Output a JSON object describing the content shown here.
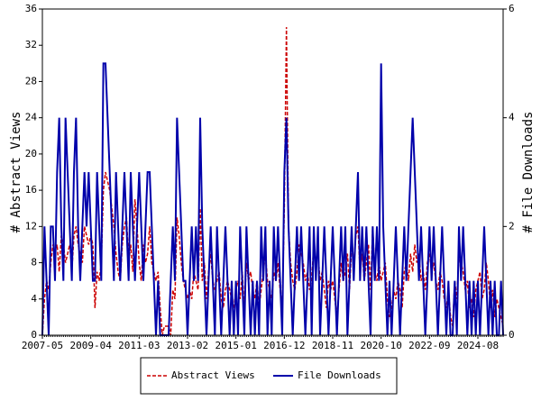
{
  "chart_data": {
    "type": "line",
    "ylabel": "# Abstract Views",
    "y2label": "# File Downloads",
    "categories": [
      "2007-05",
      null,
      null,
      null,
      null,
      null,
      null,
      null,
      null,
      null,
      null,
      null,
      null,
      null,
      null,
      null,
      null,
      null,
      null,
      null,
      null,
      null,
      null,
      "2009-04",
      null,
      null,
      null,
      null,
      null,
      null,
      null,
      null,
      null,
      null,
      null,
      null,
      null,
      null,
      null,
      null,
      null,
      null,
      null,
      null,
      null,
      null,
      "2011-03",
      null,
      null,
      null,
      null,
      null,
      null,
      null,
      null,
      null,
      null,
      null,
      null,
      null,
      null,
      null,
      null,
      null,
      null,
      null,
      null,
      null,
      null,
      "2013-02",
      null,
      null,
      null,
      null,
      null,
      null,
      null,
      null,
      null,
      null,
      null,
      null,
      null,
      null,
      null,
      null,
      null,
      null,
      null,
      null,
      null,
      null,
      "2015-01",
      null,
      null,
      null,
      null,
      null,
      null,
      null,
      null,
      null,
      null,
      null,
      null,
      null,
      null,
      null,
      null,
      null,
      null,
      null,
      null,
      null,
      null,
      "2016-12",
      null,
      null,
      null,
      null,
      null,
      null,
      null,
      null,
      null,
      null,
      null,
      null,
      null,
      null,
      null,
      null,
      null,
      null,
      null,
      null,
      null,
      null,
      "2018-11",
      null,
      null,
      null,
      null,
      null,
      null,
      null,
      null,
      null,
      null,
      null,
      null,
      null,
      null,
      null,
      null,
      null,
      null,
      null,
      null,
      null,
      null,
      "2020-10",
      null,
      null,
      null,
      null,
      null,
      null,
      null,
      null,
      null,
      null,
      null,
      null,
      null,
      null,
      null,
      null,
      null,
      null,
      null,
      null,
      null,
      null,
      "2022-09",
      null,
      null,
      null,
      null,
      null,
      null,
      null,
      null,
      null,
      null,
      null,
      null,
      null,
      null,
      null,
      null,
      null,
      null,
      null,
      null,
      null,
      null,
      "2024-08",
      null,
      null,
      null,
      null,
      null,
      null,
      null,
      null,
      null,
      null,
      null,
      null
    ],
    "series": [
      {
        "name": "Abstract Views",
        "color": "#cc0000",
        "dashed": true,
        "values": [
          0,
          4,
          6,
          5,
          8,
          10,
          9,
          10,
          7,
          11,
          10,
          8,
          9,
          10,
          7,
          11,
          12,
          10,
          9,
          8,
          12,
          11,
          10,
          11,
          10,
          3,
          7,
          6,
          8,
          16,
          18,
          17,
          16,
          14,
          12,
          9,
          7,
          6,
          10,
          12,
          13,
          8,
          10,
          7,
          15,
          12,
          8,
          6,
          10,
          8,
          9,
          12,
          8,
          7,
          6,
          7,
          3,
          0,
          1,
          1,
          1,
          0,
          5,
          4,
          13,
          11,
          8,
          6,
          5,
          4,
          5,
          4,
          7,
          6,
          5,
          14,
          6,
          8,
          4,
          7,
          9,
          6,
          5,
          6,
          7,
          4,
          3,
          5,
          6,
          5,
          4,
          3,
          5,
          6,
          4,
          7,
          3,
          8,
          6,
          7,
          5,
          4,
          6,
          3,
          5,
          7,
          9,
          6,
          5,
          4,
          7,
          6,
          8,
          5,
          3,
          14,
          34,
          12,
          8,
          6,
          5,
          7,
          10,
          9,
          8,
          6,
          7,
          5,
          6,
          10,
          8,
          9,
          6,
          7,
          5,
          3,
          6,
          5,
          6,
          4,
          2,
          5,
          8,
          6,
          7,
          9,
          5,
          10,
          8,
          11,
          12,
          7,
          9,
          6,
          8,
          10,
          5,
          12,
          7,
          6,
          8,
          6,
          7,
          8,
          4,
          2,
          3,
          5,
          4,
          6,
          5,
          3,
          7,
          8,
          6,
          9,
          7,
          10,
          8,
          9,
          6,
          7,
          5,
          8,
          9,
          7,
          8,
          6,
          5,
          7,
          6,
          4,
          3,
          5,
          2,
          1,
          6,
          4,
          9,
          8,
          7,
          5,
          6,
          3,
          4,
          2,
          5,
          6,
          7,
          4,
          5,
          8,
          6,
          3,
          5,
          2,
          4,
          3,
          2,
          1
        ]
      },
      {
        "name": "File Downloads",
        "color": "#0000aa",
        "axis": "y2",
        "values": [
          0,
          2,
          1,
          0,
          2,
          2,
          1,
          3,
          4,
          2,
          1,
          4,
          3,
          2,
          1,
          3,
          4,
          2,
          1,
          2,
          3,
          2,
          3,
          2,
          1,
          1,
          3,
          2,
          1,
          5,
          5,
          4,
          3,
          2,
          1,
          3,
          2,
          1,
          2,
          3,
          2,
          1,
          3,
          2,
          1,
          2,
          3,
          2,
          1,
          2,
          3,
          3,
          2,
          1,
          0,
          1,
          0,
          0,
          0,
          0,
          0,
          1,
          2,
          1,
          4,
          3,
          2,
          1,
          1,
          0,
          1,
          2,
          1,
          2,
          1,
          4,
          2,
          1,
          0,
          1,
          2,
          1,
          0,
          2,
          1,
          0,
          1,
          2,
          1,
          0,
          1,
          0,
          1,
          0,
          2,
          1,
          0,
          2,
          1,
          0,
          1,
          0,
          1,
          0,
          2,
          1,
          2,
          0,
          1,
          0,
          2,
          1,
          2,
          1,
          0,
          3,
          4,
          2,
          1,
          0,
          1,
          2,
          1,
          2,
          1,
          0,
          1,
          2,
          0,
          2,
          1,
          2,
          0,
          1,
          2,
          1,
          0,
          1,
          2,
          1,
          0,
          1,
          2,
          1,
          2,
          0,
          1,
          2,
          1,
          2,
          3,
          1,
          2,
          1,
          2,
          1,
          0,
          2,
          1,
          2,
          1,
          5,
          2,
          1,
          0,
          1,
          0,
          1,
          2,
          1,
          0,
          1,
          2,
          1,
          2,
          3,
          4,
          3,
          2,
          1,
          2,
          1,
          0,
          1,
          2,
          1,
          2,
          1,
          0,
          1,
          2,
          1,
          0,
          1,
          0,
          0,
          1,
          0,
          2,
          1,
          2,
          1,
          0,
          1,
          0,
          1,
          0,
          1,
          0,
          1,
          2,
          1,
          0,
          1,
          0,
          1,
          0,
          0,
          1,
          0
        ]
      }
    ],
    "ylim": [
      0,
      36
    ],
    "yticks": [
      0,
      4,
      8,
      12,
      16,
      20,
      24,
      28,
      32,
      36
    ],
    "y2lim": [
      0,
      6
    ],
    "y2ticks": [
      0,
      2,
      4,
      6
    ],
    "legend": "bottom"
  }
}
